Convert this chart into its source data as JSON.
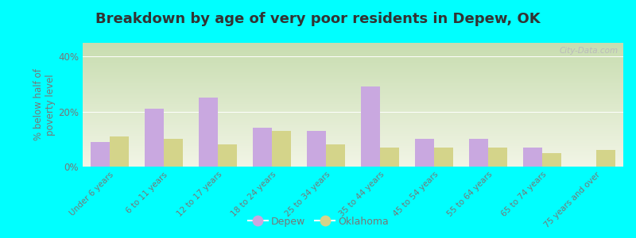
{
  "title": "Breakdown by age of very poor residents in Depew, OK",
  "categories": [
    "Under 6 years",
    "6 to 11 years",
    "12 to 17 years",
    "18 to 24 years",
    "25 to 34 years",
    "35 to 44 years",
    "45 to 54 years",
    "55 to 64 years",
    "65 to 74 years",
    "75 years and over"
  ],
  "depew_values": [
    9,
    21,
    25,
    14,
    13,
    29,
    10,
    10,
    7,
    0
  ],
  "oklahoma_values": [
    11,
    10,
    8,
    13,
    8,
    7,
    7,
    7,
    5,
    6
  ],
  "depew_color": "#c9a8e0",
  "oklahoma_color": "#d4d48a",
  "ylabel": "% below half of\npoverty level",
  "ylim": [
    0,
    45
  ],
  "yticks": [
    0,
    10,
    20,
    30,
    40
  ],
  "ytick_labels": [
    "0%",
    "20%",
    "40%"
  ],
  "ytick_vals": [
    0,
    20,
    40
  ],
  "background_color": "#00ffff",
  "grad_top_color": "#c8ddb0",
  "grad_bot_color": "#f2f5e6",
  "watermark": "City-Data.com",
  "bar_width": 0.35,
  "title_fontsize": 13,
  "axis_label_fontsize": 8.5,
  "tick_label_fontsize": 7.5,
  "legend_fontsize": 9
}
